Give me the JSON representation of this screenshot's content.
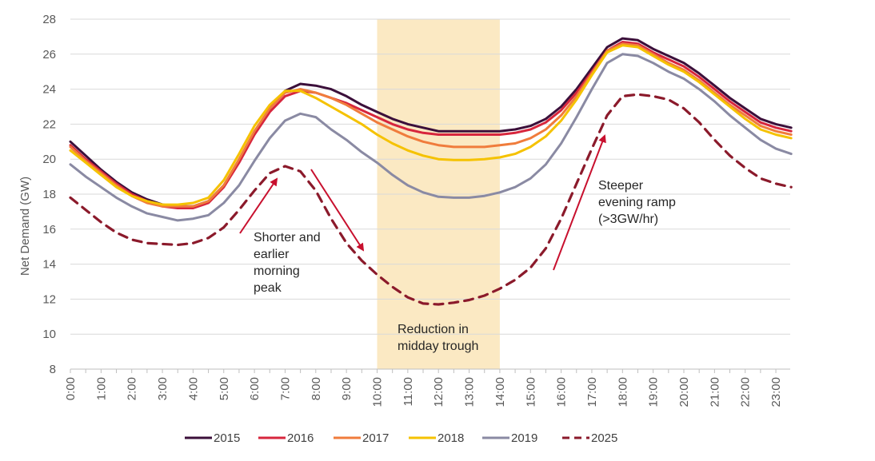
{
  "chart_data": {
    "type": "line",
    "title": "",
    "xlabel": "",
    "ylabel": "Net Demand (GW)",
    "ylim": [
      8,
      28
    ],
    "yticks": [
      8,
      10,
      12,
      14,
      16,
      18,
      20,
      22,
      24,
      26,
      28
    ],
    "x_tick_labels": [
      "0:00",
      "1:00",
      "2:00",
      "3:00",
      "4:00",
      "5:00",
      "6:00",
      "7:00",
      "8:00",
      "9:00",
      "10:00",
      "11:00",
      "12:00",
      "13:00",
      "14:00",
      "15:00",
      "16:00",
      "17:00",
      "18:00",
      "19:00",
      "20:00",
      "21:00",
      "22:00",
      "23:00"
    ],
    "x_hours": [
      0,
      0.5,
      1,
      1.5,
      2,
      2.5,
      3,
      3.5,
      4,
      4.5,
      5,
      5.5,
      6,
      6.5,
      7,
      7.5,
      8,
      8.5,
      9,
      9.5,
      10,
      10.5,
      11,
      11.5,
      12,
      12.5,
      13,
      13.5,
      14,
      14.5,
      15,
      15.5,
      16,
      16.5,
      17,
      17.5,
      18,
      18.5,
      19,
      19.5,
      20,
      20.5,
      21,
      21.5,
      22,
      22.5,
      23,
      23.5
    ],
    "grid": "horizontal",
    "legend_position": "bottom",
    "shaded_region": {
      "x_start": 10,
      "x_end": 14,
      "color": "#fbe9c3"
    },
    "series": [
      {
        "name": "2015",
        "color": "#3b0f3a",
        "dash": false,
        "values": [
          21.0,
          20.2,
          19.4,
          18.7,
          18.1,
          17.7,
          17.4,
          17.3,
          17.3,
          17.6,
          18.5,
          19.9,
          21.5,
          22.9,
          23.9,
          24.3,
          24.2,
          24.0,
          23.6,
          23.1,
          22.7,
          22.3,
          22.0,
          21.8,
          21.6,
          21.6,
          21.6,
          21.6,
          21.6,
          21.7,
          21.9,
          22.3,
          23.0,
          24.0,
          25.2,
          26.4,
          26.9,
          26.8,
          26.3,
          25.9,
          25.5,
          24.9,
          24.2,
          23.5,
          22.9,
          22.3,
          22.0,
          21.8
        ]
      },
      {
        "name": "2016",
        "color": "#d7263d",
        "dash": false,
        "values": [
          20.8,
          20.0,
          19.3,
          18.6,
          18.0,
          17.6,
          17.3,
          17.2,
          17.2,
          17.5,
          18.4,
          19.8,
          21.4,
          22.7,
          23.6,
          23.9,
          23.8,
          23.5,
          23.2,
          22.8,
          22.4,
          22.0,
          21.7,
          21.5,
          21.4,
          21.4,
          21.4,
          21.4,
          21.4,
          21.5,
          21.7,
          22.1,
          22.8,
          23.8,
          25.0,
          26.2,
          26.7,
          26.6,
          26.1,
          25.7,
          25.3,
          24.7,
          24.0,
          23.3,
          22.7,
          22.1,
          21.8,
          21.6
        ]
      },
      {
        "name": "2017",
        "color": "#f07c3c",
        "dash": false,
        "values": [
          20.7,
          19.9,
          19.2,
          18.5,
          17.9,
          17.5,
          17.3,
          17.3,
          17.3,
          17.6,
          18.5,
          20.0,
          21.6,
          22.9,
          23.8,
          24.0,
          23.8,
          23.5,
          23.1,
          22.6,
          22.1,
          21.7,
          21.3,
          21.0,
          20.8,
          20.7,
          20.7,
          20.7,
          20.8,
          20.9,
          21.2,
          21.7,
          22.5,
          23.6,
          24.9,
          26.2,
          26.6,
          26.5,
          26.0,
          25.5,
          25.1,
          24.5,
          23.8,
          23.1,
          22.5,
          21.9,
          21.6,
          21.4
        ]
      },
      {
        "name": "2018",
        "color": "#f5c200",
        "dash": false,
        "values": [
          20.5,
          19.8,
          19.1,
          18.4,
          17.9,
          17.6,
          17.4,
          17.4,
          17.5,
          17.8,
          18.8,
          20.3,
          21.9,
          23.1,
          23.9,
          23.9,
          23.5,
          23.0,
          22.5,
          22.0,
          21.4,
          20.9,
          20.5,
          20.2,
          20.0,
          19.95,
          19.95,
          20.0,
          20.1,
          20.3,
          20.7,
          21.3,
          22.2,
          23.4,
          24.8,
          26.1,
          26.5,
          26.4,
          25.9,
          25.4,
          25.0,
          24.4,
          23.7,
          23.0,
          22.3,
          21.7,
          21.4,
          21.2
        ]
      },
      {
        "name": "2019",
        "color": "#8a8aa3",
        "dash": false,
        "values": [
          19.7,
          19.0,
          18.4,
          17.8,
          17.3,
          16.9,
          16.7,
          16.5,
          16.6,
          16.8,
          17.5,
          18.5,
          19.9,
          21.2,
          22.2,
          22.6,
          22.4,
          21.7,
          21.1,
          20.4,
          19.8,
          19.1,
          18.5,
          18.1,
          17.85,
          17.8,
          17.8,
          17.9,
          18.1,
          18.4,
          18.9,
          19.7,
          20.9,
          22.4,
          24.0,
          25.5,
          26.0,
          25.9,
          25.5,
          25.0,
          24.6,
          24.0,
          23.3,
          22.5,
          21.8,
          21.1,
          20.6,
          20.3
        ]
      },
      {
        "name": "2025",
        "color": "#8b1a2b",
        "dash": true,
        "values": [
          17.8,
          17.1,
          16.4,
          15.8,
          15.4,
          15.2,
          15.15,
          15.1,
          15.2,
          15.5,
          16.1,
          17.1,
          18.2,
          19.2,
          19.6,
          19.3,
          18.2,
          16.6,
          15.2,
          14.2,
          13.4,
          12.7,
          12.1,
          11.75,
          11.7,
          11.8,
          11.95,
          12.2,
          12.6,
          13.1,
          13.8,
          14.9,
          16.6,
          18.6,
          20.6,
          22.5,
          23.6,
          23.7,
          23.6,
          23.4,
          22.9,
          22.1,
          21.1,
          20.2,
          19.5,
          18.9,
          18.6,
          18.4
        ]
      }
    ],
    "annotations": [
      {
        "text_lines": [
          "Shorter and",
          "earlier",
          "morning",
          "peak"
        ]
      },
      {
        "text_lines": [
          "Reduction in",
          "midday trough"
        ]
      },
      {
        "text_lines": [
          "Steeper",
          "evening ramp",
          "(>3GW/hr)"
        ]
      }
    ],
    "arrow_color": "#c8102e"
  }
}
